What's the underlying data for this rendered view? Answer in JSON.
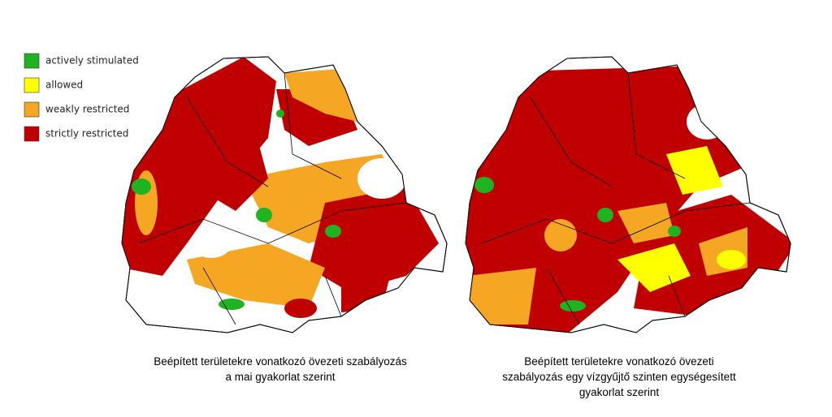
{
  "legend": {
    "items": [
      {
        "label": "actively stimulated",
        "color": "#1fb31f"
      },
      {
        "label": "allowed",
        "color": "#ffff00"
      },
      {
        "label": "weakly restricted",
        "color": "#f5a623"
      },
      {
        "label": "strictly restricted",
        "color": "#c00000"
      }
    ]
  },
  "maps": [
    {
      "caption": [
        "Beépített területekre vonatkozó övezeti szabályozás",
        "a mai gyakorlat szerint"
      ]
    },
    {
      "caption": [
        "Beépített területekre vonatkozó övezeti",
        "szabályozás egy vízgyűjtő szinten egységesített",
        "gyakorlat szerint"
      ]
    }
  ]
}
